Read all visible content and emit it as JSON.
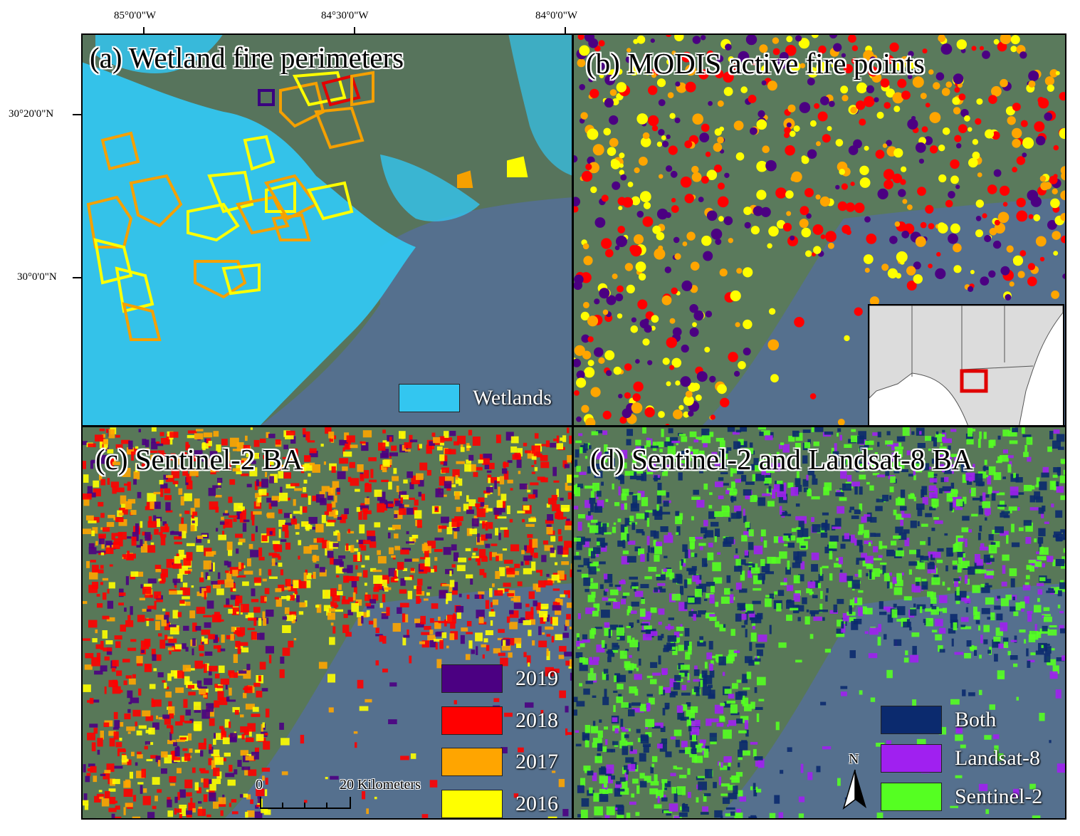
{
  "axes": {
    "top_labels": [
      "85°0'0\"W",
      "84°30'0\"W",
      "84°0'0\"W"
    ],
    "left_labels": [
      "30°20'0\"N",
      "30°0'0\"N"
    ]
  },
  "panels": {
    "a": {
      "title": "(a) Wetland fire perimeters",
      "legend": [
        {
          "label": "Wetlands",
          "color": "#33c6f0"
        }
      ]
    },
    "b": {
      "title": "(b) MODIS active fire points"
    },
    "c": {
      "title": "(c) Sentinel-2 BA",
      "legend": [
        {
          "label": "2019",
          "color": "#4b0082"
        },
        {
          "label": "2018",
          "color": "#ff0000"
        },
        {
          "label": "2017",
          "color": "#ffa500"
        },
        {
          "label": "2016",
          "color": "#ffff00"
        }
      ],
      "scale_bar": {
        "start": "0",
        "end": "20 Kilometers"
      }
    },
    "d": {
      "title": "(d) Sentinel-2 and Landsat-8 BA",
      "legend": [
        {
          "label": "Both",
          "color": "#0b2a6e"
        },
        {
          "label": "Landsat-8",
          "color": "#a020f0"
        },
        {
          "label": "Sentinel-2",
          "color": "#55ff22"
        }
      ],
      "north_arrow": "N"
    }
  }
}
